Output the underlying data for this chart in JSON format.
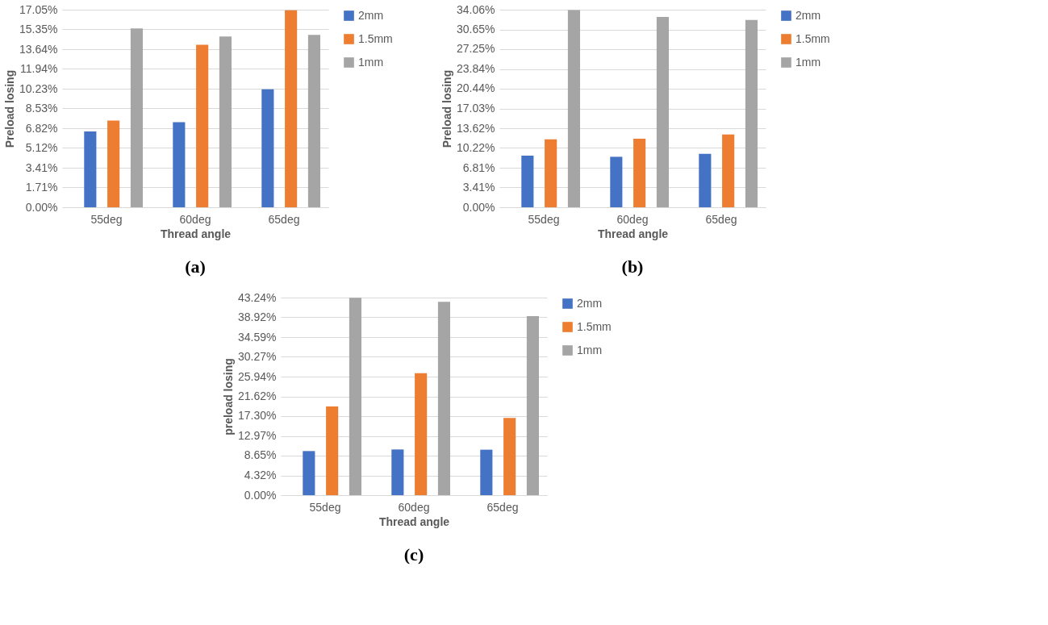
{
  "chart_data": [
    {
      "type": "bar",
      "xlabel": "Thread angle",
      "ylabel": "Preload losing",
      "categories": [
        "55deg",
        "60deg",
        "65deg"
      ],
      "series": [
        {
          "name": "2mm",
          "color": "#4472c4",
          "values": [
            6.55,
            7.35,
            10.17
          ]
        },
        {
          "name": "1.5mm",
          "color": "#ed7d31",
          "values": [
            7.48,
            14.03,
            17.0
          ]
        },
        {
          "name": "1mm",
          "color": "#a5a5a5",
          "values": [
            15.44,
            14.73,
            14.88
          ]
        }
      ],
      "ylim": [
        0,
        17.05
      ],
      "yticks": [
        {
          "value": 0,
          "label": "0.00%"
        },
        {
          "value": 1.71,
          "label": "1.71%"
        },
        {
          "value": 3.41,
          "label": "3.41%"
        },
        {
          "value": 5.12,
          "label": "5.12%"
        },
        {
          "value": 6.82,
          "label": "6.82%"
        },
        {
          "value": 8.53,
          "label": "8.53%"
        },
        {
          "value": 10.23,
          "label": "10.23%"
        },
        {
          "value": 11.94,
          "label": "11.94%"
        },
        {
          "value": 13.64,
          "label": "13.64%"
        },
        {
          "value": 15.35,
          "label": "15.35%"
        },
        {
          "value": 17.05,
          "label": "17.05%"
        }
      ],
      "grid": "y",
      "legend": "right",
      "annotations": [
        "(a)"
      ]
    },
    {
      "type": "bar",
      "xlabel": "Thread angle",
      "ylabel": "Preload losing",
      "categories": [
        "55deg",
        "60deg",
        "65deg"
      ],
      "series": [
        {
          "name": "2mm",
          "color": "#4472c4",
          "values": [
            8.9,
            8.7,
            9.2
          ]
        },
        {
          "name": "1.5mm",
          "color": "#ed7d31",
          "values": [
            11.7,
            11.8,
            12.55
          ]
        },
        {
          "name": "1mm",
          "color": "#a5a5a5",
          "values": [
            34.0,
            32.8,
            32.3
          ]
        }
      ],
      "ylim": [
        0,
        34.06
      ],
      "yticks": [
        {
          "value": 0,
          "label": "0.00%"
        },
        {
          "value": 3.41,
          "label": "3.41%"
        },
        {
          "value": 6.81,
          "label": "6.81%"
        },
        {
          "value": 10.22,
          "label": "10.22%"
        },
        {
          "value": 13.62,
          "label": "13.62%"
        },
        {
          "value": 17.03,
          "label": "17.03%"
        },
        {
          "value": 20.44,
          "label": "20.44%"
        },
        {
          "value": 23.84,
          "label": "23.84%"
        },
        {
          "value": 27.25,
          "label": "27.25%"
        },
        {
          "value": 30.65,
          "label": "30.65%"
        },
        {
          "value": 34.06,
          "label": "34.06%"
        }
      ],
      "grid": "y",
      "legend": "right",
      "annotations": [
        "(b)"
      ]
    },
    {
      "type": "bar",
      "xlabel": "Thread angle",
      "ylabel": "preload losing",
      "categories": [
        "55deg",
        "60deg",
        "65deg"
      ],
      "series": [
        {
          "name": "2mm",
          "color": "#4472c4",
          "values": [
            9.65,
            10.0,
            9.95
          ]
        },
        {
          "name": "1.5mm",
          "color": "#ed7d31",
          "values": [
            19.4,
            26.7,
            16.9
          ]
        },
        {
          "name": "1mm",
          "color": "#a5a5a5",
          "values": [
            43.2,
            42.3,
            39.2
          ]
        }
      ],
      "ylim": [
        0,
        43.24
      ],
      "yticks": [
        {
          "value": 0,
          "label": "0.00%"
        },
        {
          "value": 4.32,
          "label": "4.32%"
        },
        {
          "value": 8.65,
          "label": "8.65%"
        },
        {
          "value": 12.97,
          "label": "12.97%"
        },
        {
          "value": 17.3,
          "label": "17.30%"
        },
        {
          "value": 21.62,
          "label": "21.62%"
        },
        {
          "value": 25.94,
          "label": "25.94%"
        },
        {
          "value": 30.27,
          "label": "30.27%"
        },
        {
          "value": 34.59,
          "label": "34.59%"
        },
        {
          "value": 38.92,
          "label": "38.92%"
        },
        {
          "value": 43.24,
          "label": "43.24%"
        }
      ],
      "grid": "y",
      "legend": "right",
      "annotations": [
        "(c)"
      ]
    }
  ]
}
